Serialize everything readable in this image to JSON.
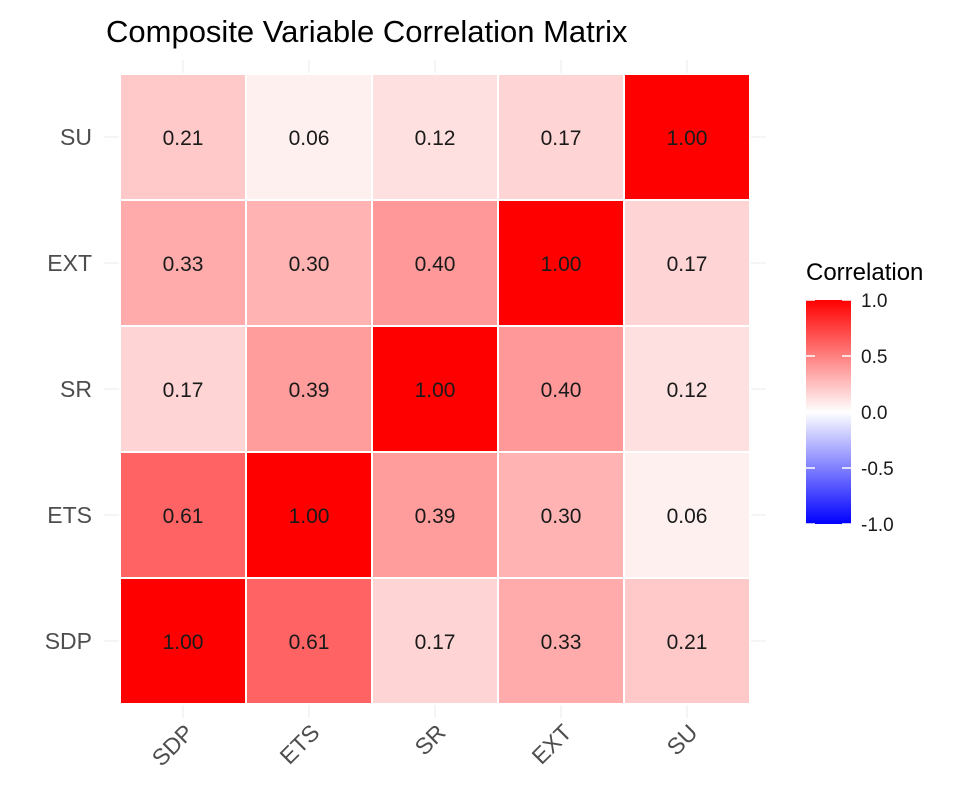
{
  "chart_data": {
    "type": "heatmap",
    "title": "Composite Variable Correlation Matrix",
    "x_categories": [
      "SDP",
      "ETS",
      "SR",
      "EXT",
      "SU"
    ],
    "y_categories": [
      "SDP",
      "ETS",
      "SR",
      "EXT",
      "SU"
    ],
    "values": [
      [
        1.0,
        0.61,
        0.17,
        0.33,
        0.21
      ],
      [
        0.61,
        1.0,
        0.39,
        0.3,
        0.06
      ],
      [
        0.17,
        0.39,
        1.0,
        0.4,
        0.12
      ],
      [
        0.33,
        0.3,
        0.4,
        1.0,
        0.17
      ],
      [
        0.21,
        0.06,
        0.12,
        0.17,
        1.0
      ]
    ],
    "value_labels": [
      [
        "1.00",
        "0.61",
        "0.17",
        "0.33",
        "0.21"
      ],
      [
        "0.61",
        "1.00",
        "0.39",
        "0.30",
        "0.06"
      ],
      [
        "0.17",
        "0.39",
        "1.00",
        "0.40",
        "0.12"
      ],
      [
        "0.33",
        "0.30",
        "0.40",
        "1.00",
        "0.17"
      ],
      [
        "0.21",
        "0.06",
        "0.12",
        "0.17",
        "1.00"
      ]
    ],
    "xlabel": "",
    "ylabel": "",
    "color_scale": {
      "low": "#0000ff",
      "mid": "#ffffff",
      "high": "#ff0000",
      "min": -1.0,
      "max": 1.0
    },
    "legend": {
      "title": "Correlation",
      "position": "right",
      "ticks": [
        1.0,
        0.5,
        0.0,
        -0.5,
        -1.0
      ],
      "tick_labels": [
        "1.0",
        "0.5",
        "0.0",
        "-0.5",
        "-1.0"
      ]
    },
    "grid": true
  }
}
